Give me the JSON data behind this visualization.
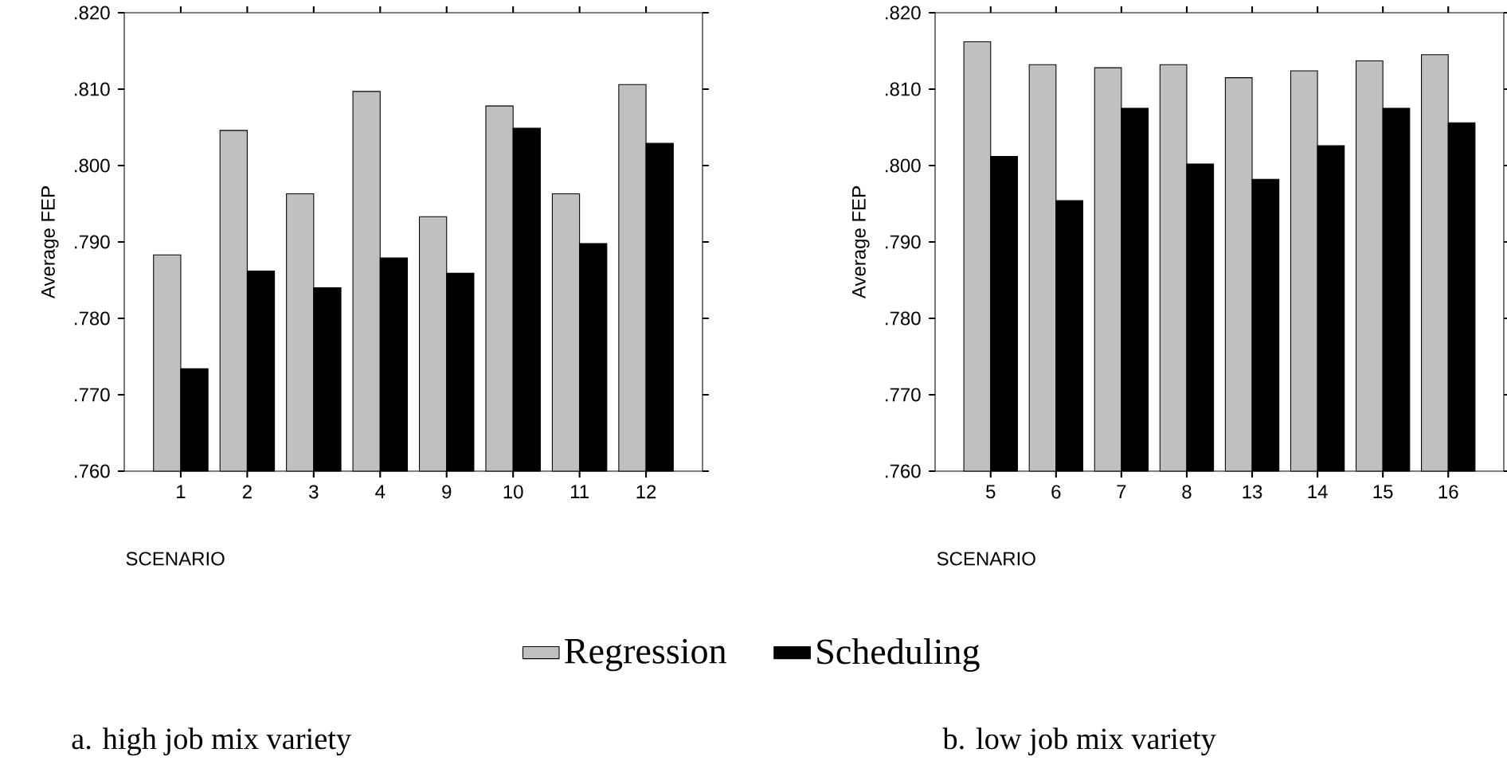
{
  "chart_data": [
    {
      "type": "bar",
      "xlabel": "SCENARIO",
      "ylabel": "Average FEP",
      "categories": [
        "1",
        "2",
        "3",
        "4",
        "9",
        "10",
        "11",
        "12"
      ],
      "ylim": [
        0.76,
        0.82
      ],
      "yticks": [
        {
          "value": 0.76,
          "label": ".760"
        },
        {
          "value": 0.77,
          "label": ".770"
        },
        {
          "value": 0.78,
          "label": ".780"
        },
        {
          "value": 0.79,
          "label": ".790"
        },
        {
          "value": 0.8,
          "label": ".800"
        },
        {
          "value": 0.81,
          "label": ".810"
        },
        {
          "value": 0.82,
          "label": ".820"
        }
      ],
      "series": [
        {
          "name": "Regression",
          "color": "#c0c0c0",
          "values": [
            0.7883,
            0.8046,
            0.7963,
            0.8097,
            0.7933,
            0.8078,
            0.7963,
            0.8106
          ]
        },
        {
          "name": "Scheduling",
          "color": "#000000",
          "values": [
            0.7734,
            0.7862,
            0.784,
            0.7879,
            0.7859,
            0.8049,
            0.7898,
            0.8029
          ]
        }
      ],
      "legend": "bottom",
      "annotations": [
        "a.    high job mix variety"
      ]
    },
    {
      "type": "bar",
      "xlabel": "SCENARIO",
      "ylabel": "Average FEP",
      "categories": [
        "5",
        "6",
        "7",
        "8",
        "13",
        "14",
        "15",
        "16"
      ],
      "ylim": [
        0.76,
        0.82
      ],
      "yticks": [
        {
          "value": 0.76,
          "label": ".760"
        },
        {
          "value": 0.77,
          "label": ".770"
        },
        {
          "value": 0.78,
          "label": ".780"
        },
        {
          "value": 0.79,
          "label": ".790"
        },
        {
          "value": 0.8,
          "label": ".800"
        },
        {
          "value": 0.81,
          "label": ".810"
        },
        {
          "value": 0.82,
          "label": ".820"
        }
      ],
      "series": [
        {
          "color": "#c0c0c0",
          "values": [
            0.8162,
            0.8132,
            0.8128,
            0.8132,
            0.8115,
            0.8124,
            0.8137,
            0.8145
          ]
        },
        {
          "color": "#000000",
          "values": [
            0.8012,
            0.7954,
            0.8075,
            0.8002,
            0.7982,
            0.8026,
            0.8075,
            0.8056
          ]
        }
      ],
      "annotations": [
        "b.    low job mix variety"
      ]
    }
  ]
}
